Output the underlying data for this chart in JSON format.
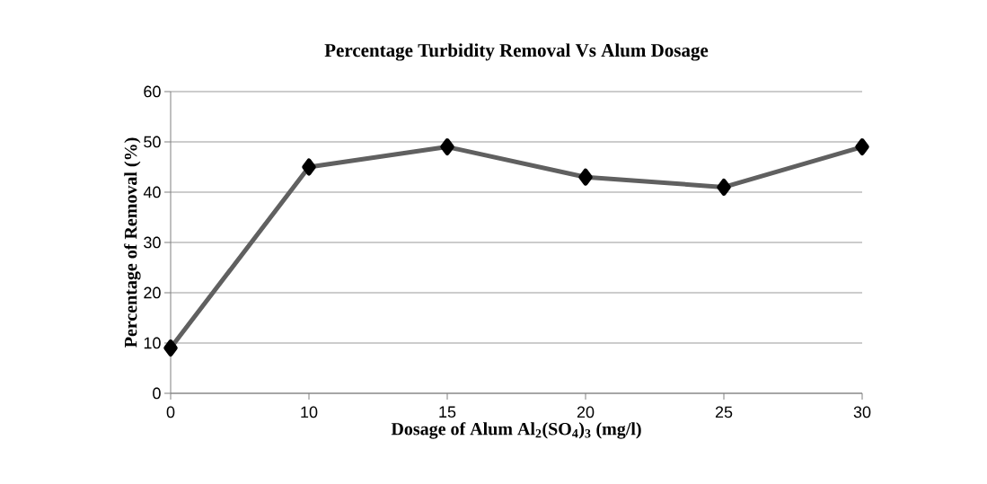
{
  "chart_data": {
    "type": "line",
    "title": "Percentage Turbidity Removal Vs Alum Dosage",
    "xlabel": "Dosage of  Alum Al$_{2}$(SO$_{4}$)$_{3}$ (mg/l)",
    "ylabel": "Percentage  of Removal (%)",
    "categories": [
      "0",
      "10",
      "15",
      "20",
      "25",
      "30"
    ],
    "series": [
      {
        "color": "#606060",
        "values": [
          9,
          45,
          49,
          43,
          41,
          49
        ]
      }
    ],
    "ylim": [
      0,
      60
    ],
    "yticks": [
      0,
      10,
      20,
      30,
      40,
      50,
      60
    ],
    "grid": "y",
    "marker": "diamond",
    "line_style": "solid"
  }
}
